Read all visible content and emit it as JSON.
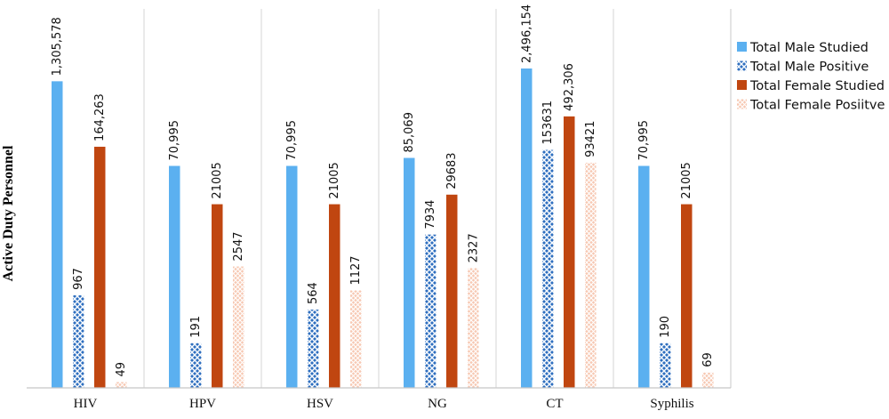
{
  "colors": {
    "male_studied": "#5bb0f0",
    "male_positive": "#2f6fbf",
    "female_studied": "#c04610",
    "female_positive": "#f0a888"
  },
  "chart_data": {
    "type": "bar",
    "scale": "broken/non-linear (bar heights not proportional to labels)",
    "ylabel": "Active Duty Personnel",
    "xlabel": "",
    "grid": "vertical separators between categories",
    "legend_position": "top-right",
    "categories": [
      "HIV",
      "HPV",
      "HSV",
      "NG",
      "CT",
      "Syphilis"
    ],
    "series": [
      {
        "name": "Total Male Studied",
        "pattern": "solid",
        "color_key": "male_studied",
        "values": [
          1305578,
          70995,
          70995,
          85069,
          2496154,
          70995
        ],
        "labels": [
          "1,305,578",
          "70,995",
          "70,995",
          "85,069",
          "2,496,154",
          "70,995"
        ],
        "visual_level": [
          0.96,
          0.695,
          0.695,
          0.72,
          1.0,
          0.695
        ]
      },
      {
        "name": "Total Male Positive",
        "pattern": "crosshatch",
        "color_key": "male_positive",
        "values": [
          967,
          191,
          564,
          7934,
          153631,
          190
        ],
        "labels": [
          "967",
          "191",
          "564",
          "7934",
          "153631",
          "190"
        ],
        "visual_level": [
          0.29,
          0.14,
          0.245,
          0.48,
          0.745,
          0.14
        ]
      },
      {
        "name": "Total Female Studied",
        "pattern": "solid",
        "color_key": "female_studied",
        "values": [
          164263,
          21005,
          21005,
          29683,
          492306,
          21005
        ],
        "labels": [
          "164,263",
          "21005",
          "21005",
          "29683",
          "492,306",
          "21005"
        ],
        "visual_level": [
          0.755,
          0.575,
          0.575,
          0.605,
          0.85,
          0.575
        ]
      },
      {
        "name": "Total Female Posiitve",
        "pattern": "dotted",
        "color_key": "female_positive",
        "values": [
          49,
          2547,
          1127,
          2327,
          93421,
          69
        ],
        "labels": [
          "49",
          "2547",
          "1127",
          "2327",
          "93421",
          "69"
        ],
        "visual_level": [
          0.018,
          0.38,
          0.305,
          0.375,
          0.705,
          0.048
        ]
      }
    ]
  }
}
